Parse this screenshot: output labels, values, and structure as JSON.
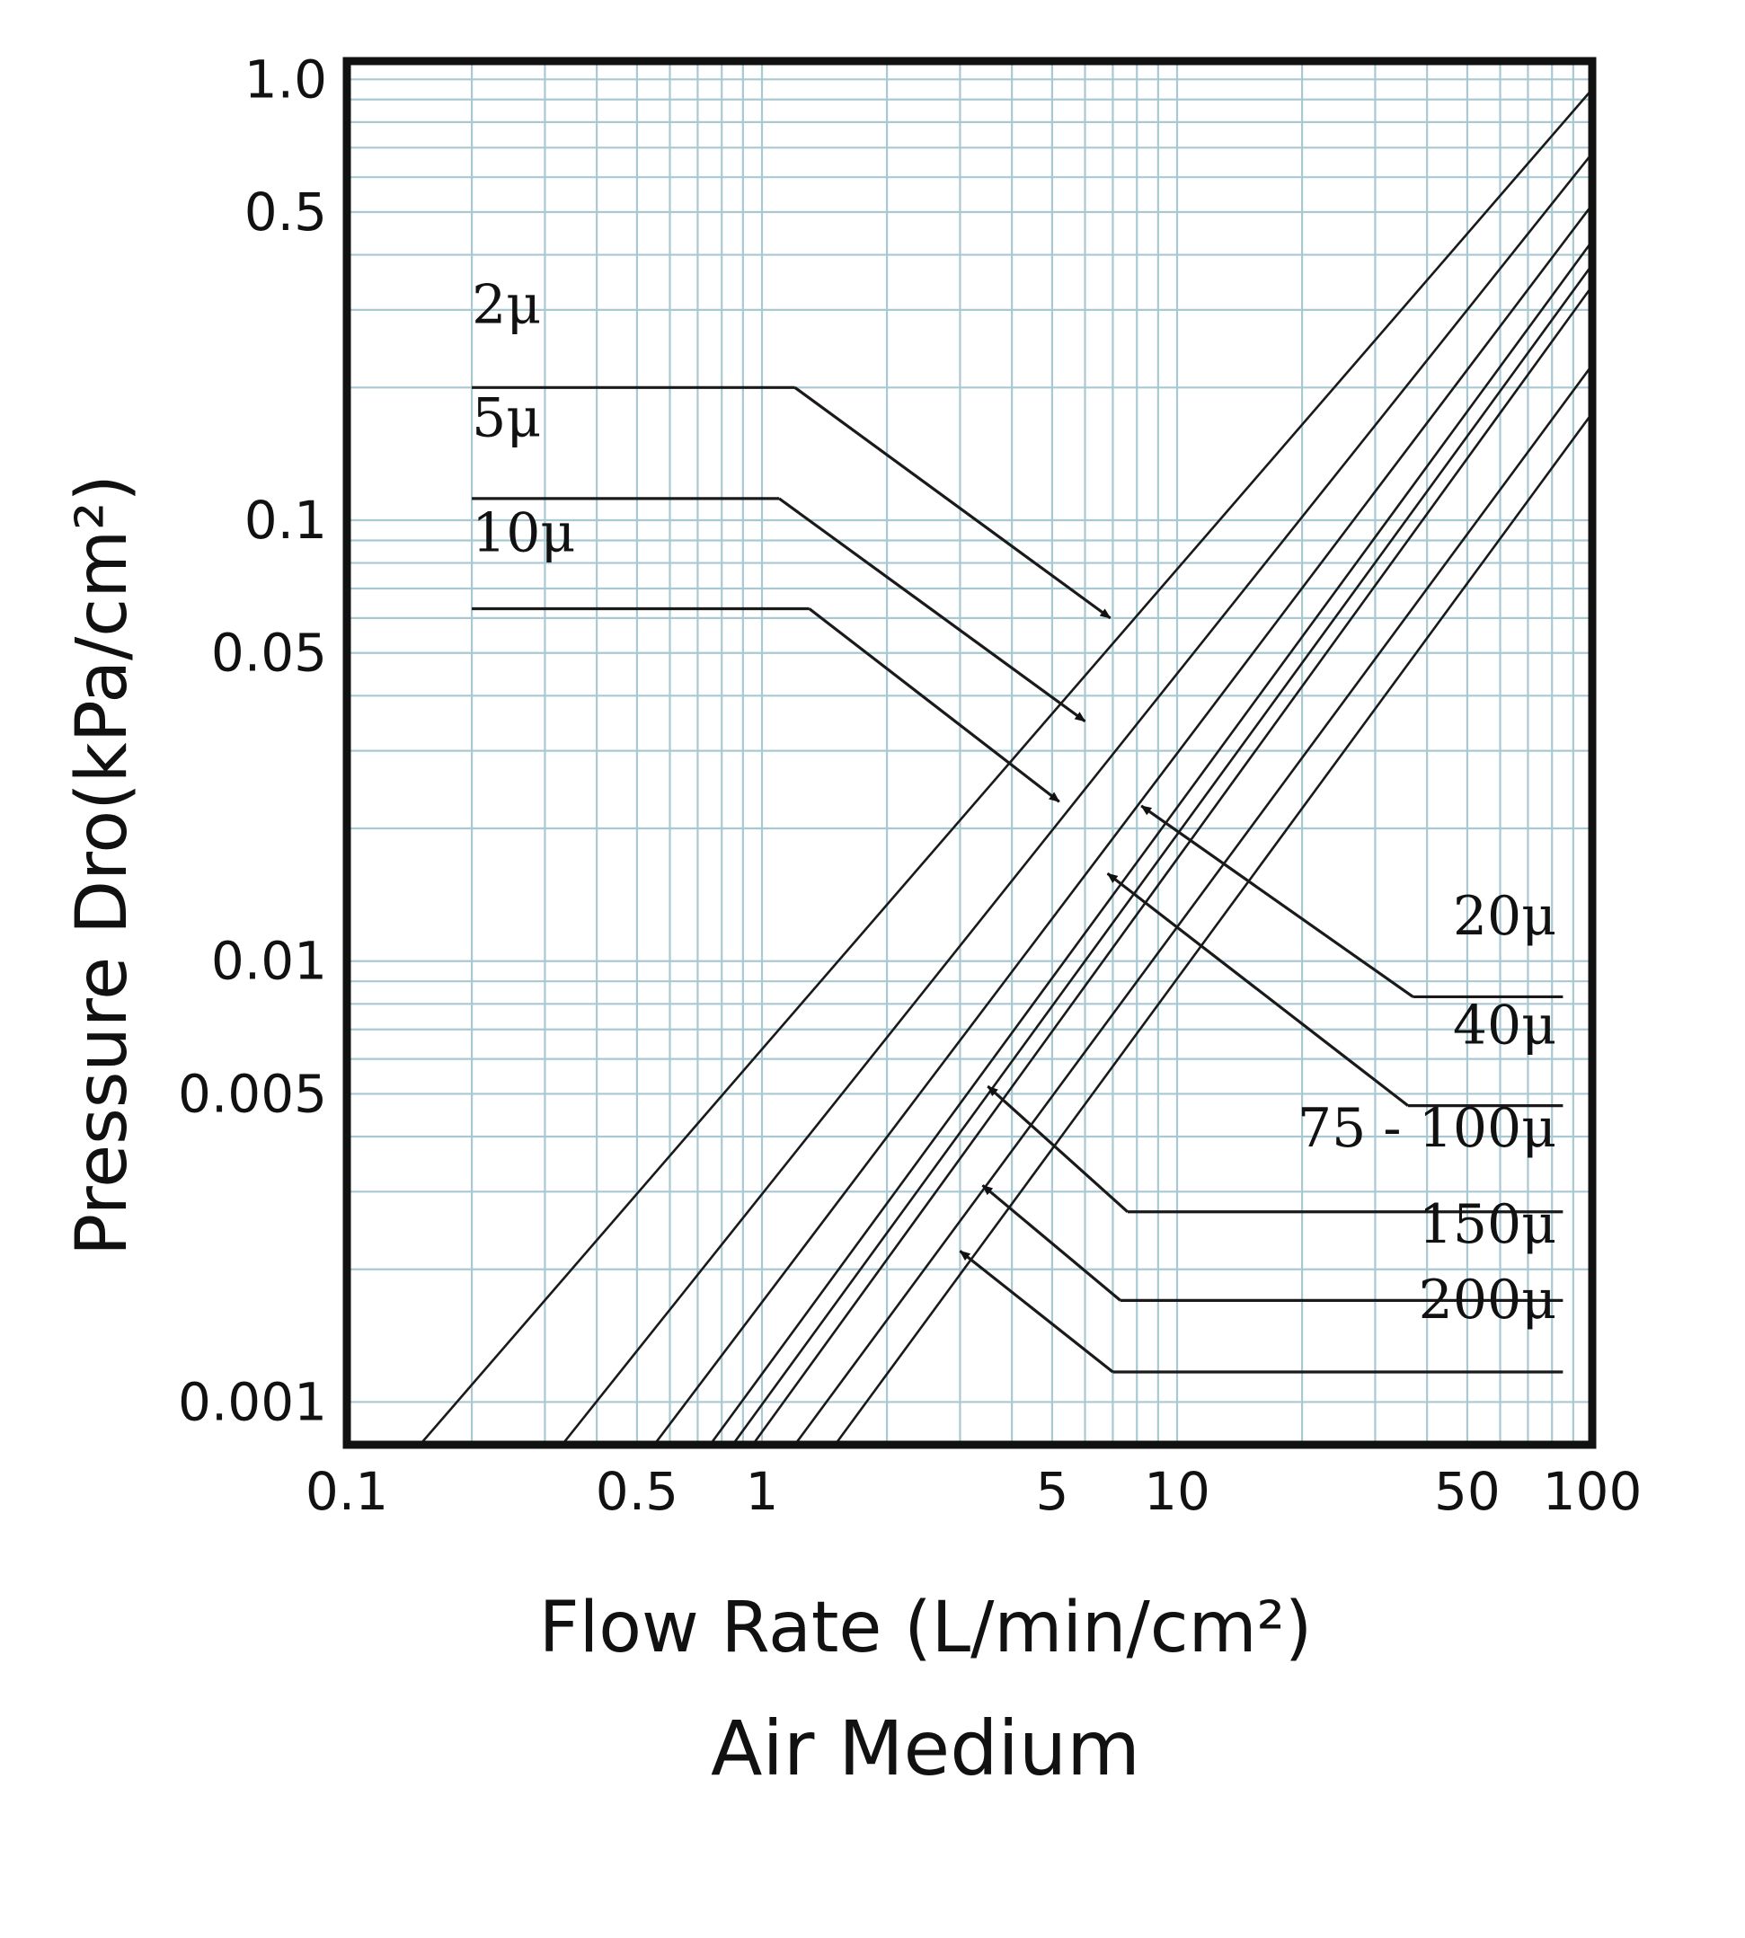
{
  "colors": {
    "background": "#ffffff",
    "grid": "#a9c9d2",
    "frame": "#111111",
    "line": "#1a1a1a",
    "text": "#111111"
  },
  "chart_data": {
    "type": "line",
    "title": "",
    "xlabel": "Flow Rate (L/min/cm²)",
    "ylabel": "Pressure Dro(kPa/cm²)",
    "caption": "Air Medium",
    "xscale": "log",
    "yscale": "log",
    "xlim": [
      0.1,
      100
    ],
    "ylim": [
      0.0008,
      1.1
    ],
    "grid": true,
    "x_tick_labels": [
      {
        "value": 0.1,
        "label": "0.1"
      },
      {
        "value": 0.5,
        "label": "0.5"
      },
      {
        "value": 1,
        "label": "1"
      },
      {
        "value": 5,
        "label": "5"
      },
      {
        "value": 10,
        "label": "10"
      },
      {
        "value": 50,
        "label": "50"
      },
      {
        "value": 100,
        "label": "100"
      }
    ],
    "y_tick_labels": [
      {
        "value": 1.0,
        "label": "1.0"
      },
      {
        "value": 0.5,
        "label": "0.5"
      },
      {
        "value": 0.1,
        "label": "0.1"
      },
      {
        "value": 0.05,
        "label": "0.05"
      },
      {
        "value": 0.01,
        "label": "0.01"
      },
      {
        "value": 0.005,
        "label": "0.005"
      },
      {
        "value": 0.001,
        "label": "0.001"
      }
    ],
    "x_grid": [
      0.1,
      0.2,
      0.3,
      0.4,
      0.5,
      0.6,
      0.7,
      0.8,
      0.9,
      1,
      2,
      3,
      4,
      5,
      6,
      7,
      8,
      9,
      10,
      20,
      30,
      40,
      50,
      60,
      70,
      80,
      90,
      100
    ],
    "y_grid": [
      0.001,
      0.002,
      0.003,
      0.004,
      0.005,
      0.006,
      0.007,
      0.008,
      0.009,
      0.01,
      0.02,
      0.03,
      0.04,
      0.05,
      0.06,
      0.07,
      0.08,
      0.09,
      0.1,
      0.2,
      0.3,
      0.4,
      0.5,
      0.6,
      0.7,
      0.8,
      0.9,
      1.0
    ],
    "series": [
      {
        "name": "2μ",
        "x": [
          0.15,
          100
        ],
        "y": [
          0.0008,
          0.95
        ]
      },
      {
        "name": "5μ",
        "x": [
          0.33,
          100
        ],
        "y": [
          0.0008,
          0.68
        ]
      },
      {
        "name": "10μ",
        "x": [
          0.55,
          100
        ],
        "y": [
          0.0008,
          0.52
        ]
      },
      {
        "name": "20μ",
        "x": [
          0.75,
          100
        ],
        "y": [
          0.0008,
          0.43
        ]
      },
      {
        "name": "40μ",
        "x": [
          0.85,
          100
        ],
        "y": [
          0.0008,
          0.38
        ]
      },
      {
        "name": "75 - 100μ",
        "x": [
          1.2,
          100
        ],
        "y": [
          0.0008,
          0.225
        ]
      },
      {
        "name": "150μ",
        "x": [
          1.5,
          100
        ],
        "y": [
          0.0008,
          0.175
        ]
      },
      {
        "name": "200μ",
        "x": [
          0.95,
          100
        ],
        "y": [
          0.0008,
          0.34
        ]
      }
    ],
    "annotations": [
      {
        "label": "2μ",
        "side": "left",
        "text_x": 0.2,
        "text_y": 0.28,
        "line_from_x": 0.2,
        "line_to_x": 1.2,
        "line_y": 0.2,
        "arrow_to_x": 6.9,
        "arrow_to_y": 0.06
      },
      {
        "label": "5μ",
        "side": "left",
        "text_x": 0.2,
        "text_y": 0.155,
        "line_from_x": 0.2,
        "line_to_x": 1.1,
        "line_y": 0.112,
        "arrow_to_x": 6.0,
        "arrow_to_y": 0.035
      },
      {
        "label": "10μ",
        "side": "left",
        "text_x": 0.2,
        "text_y": 0.085,
        "line_from_x": 0.2,
        "line_to_x": 1.3,
        "line_y": 0.063,
        "arrow_to_x": 5.2,
        "arrow_to_y": 0.023
      },
      {
        "label": "20μ",
        "side": "right",
        "text_x": 82,
        "text_y": 0.0115,
        "line_from_x": 85,
        "line_to_x": 37,
        "line_y": 0.0083,
        "arrow_to_x": 8.2,
        "arrow_to_y": 0.0225
      },
      {
        "label": "40μ",
        "side": "right",
        "text_x": 82,
        "text_y": 0.0065,
        "line_from_x": 85,
        "line_to_x": 36,
        "line_y": 0.0047,
        "arrow_to_x": 6.8,
        "arrow_to_y": 0.0158
      },
      {
        "label": "75 - 100μ",
        "side": "right",
        "text_x": 82,
        "text_y": 0.0038,
        "line_from_x": 85,
        "line_to_x": 7.6,
        "line_y": 0.0027,
        "arrow_to_x": 3.5,
        "arrow_to_y": 0.0052
      },
      {
        "label": "150μ",
        "side": "right",
        "text_x": 82,
        "text_y": 0.0023,
        "line_from_x": 85,
        "line_to_x": 7.3,
        "line_y": 0.0017,
        "arrow_to_x": 3.4,
        "arrow_to_y": 0.0031
      },
      {
        "label": "200μ",
        "side": "right",
        "text_x": 82,
        "text_y": 0.00155,
        "line_from_x": 85,
        "line_to_x": 7.0,
        "line_y": 0.00117,
        "arrow_to_x": 3.0,
        "arrow_to_y": 0.0022
      }
    ]
  }
}
